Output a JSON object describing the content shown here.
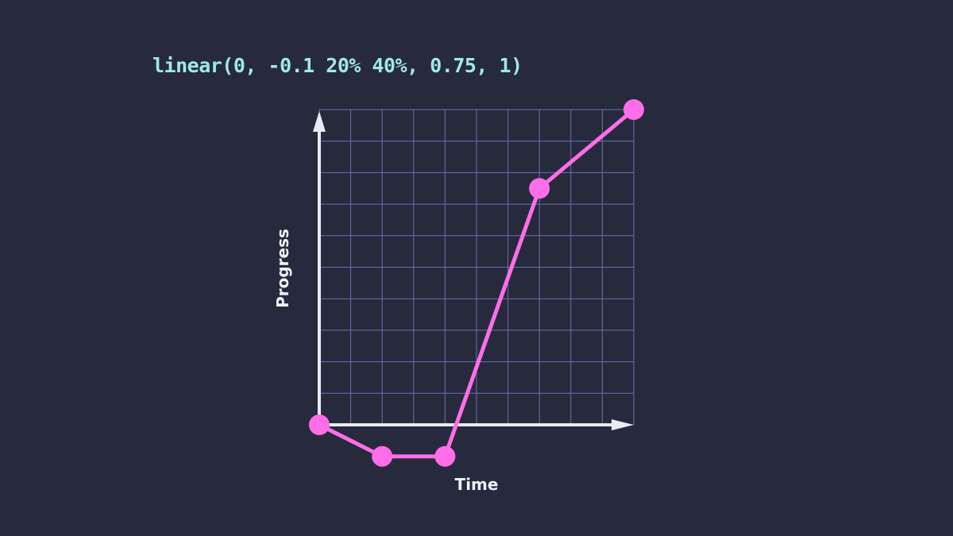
{
  "title": "linear(0, -0.1 20% 40%, 0.75, 1)",
  "chart_data": {
    "type": "line",
    "xlabel": "Time",
    "ylabel": "Progress",
    "xlim": [
      0,
      1
    ],
    "ylim": [
      0,
      1
    ],
    "grid": true,
    "grid_divisions": 10,
    "points": [
      {
        "x": 0,
        "y": 0
      },
      {
        "x": 0.2,
        "y": -0.1
      },
      {
        "x": 0.4,
        "y": -0.1
      },
      {
        "x": 0.7,
        "y": 0.75
      },
      {
        "x": 1,
        "y": 1
      }
    ],
    "colors": {
      "line": "#ff6ee8",
      "grid": "#6a70b0",
      "axis": "#e8eaf4",
      "title": "#9feae4",
      "background": "#272a3d"
    }
  }
}
